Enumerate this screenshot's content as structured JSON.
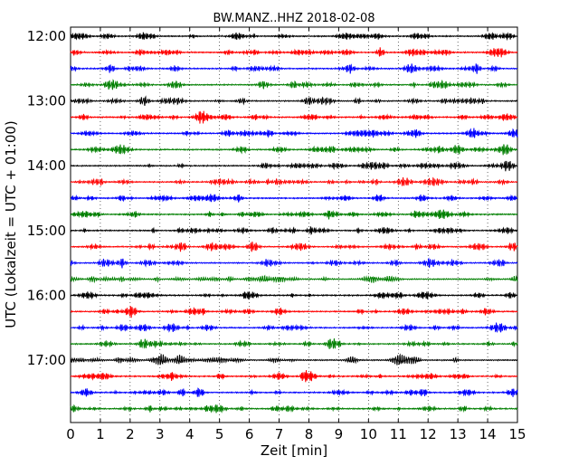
{
  "chart_data": {
    "type": "line",
    "title": "BW.MANZ..HHZ 2018-02-08",
    "xlabel": "Zeit  [min]",
    "ylabel": "UTC (Lokalzeit = UTC + 01:00)",
    "xlim": [
      0,
      15
    ],
    "x_ticks": [
      0,
      1,
      2,
      3,
      4,
      5,
      6,
      7,
      8,
      9,
      10,
      11,
      12,
      13,
      14,
      15
    ],
    "x_tick_labels": [
      "0",
      "1",
      "2",
      "3",
      "4",
      "5",
      "6",
      "7",
      "8",
      "9",
      "10",
      "11",
      "12",
      "13",
      "14",
      "15"
    ],
    "y_tick_labels": [
      "12:00",
      "13:00",
      "14:00",
      "15:00",
      "16:00",
      "17:00"
    ],
    "y_tick_trace_index": [
      0,
      4,
      8,
      12,
      16,
      20
    ],
    "trace_start_times": [
      "12:00",
      "12:15",
      "12:30",
      "12:45",
      "13:00",
      "13:15",
      "13:30",
      "13:45",
      "14:00",
      "14:15",
      "14:30",
      "14:45",
      "15:00",
      "15:15",
      "15:30",
      "15:45",
      "16:00",
      "16:15",
      "16:30",
      "16:45",
      "17:00",
      "17:15",
      "17:30",
      "17:45"
    ],
    "trace_minutes": 15,
    "color_cycle": [
      "#000000",
      "#ff0000",
      "#0000ff",
      "#007f00"
    ],
    "grid": "vertical-dotted"
  }
}
